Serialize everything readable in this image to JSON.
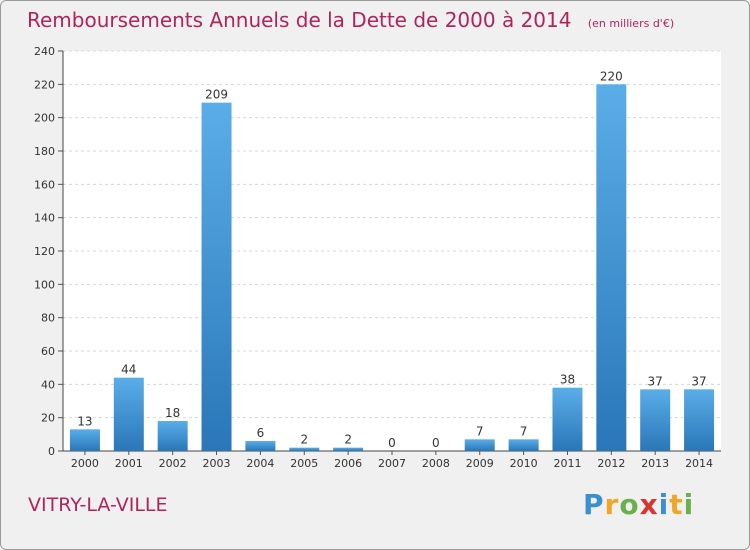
{
  "chart_data": {
    "type": "bar",
    "title": "Remboursements Annuels de la Dette de 2000 à 2014",
    "subtitle": "(en milliers d'€)",
    "categories": [
      "2000",
      "2001",
      "2002",
      "2003",
      "2004",
      "2005",
      "2006",
      "2007",
      "2008",
      "2009",
      "2010",
      "2011",
      "2012",
      "2013",
      "2014"
    ],
    "values": [
      13,
      44,
      18,
      209,
      6,
      2,
      2,
      0,
      0,
      7,
      7,
      38,
      220,
      37,
      37
    ],
    "ylim": [
      0,
      240
    ],
    "yticks": [
      0,
      20,
      40,
      60,
      80,
      100,
      120,
      140,
      160,
      180,
      200,
      220,
      240
    ],
    "grid": true,
    "colors": {
      "bar_light": "#5aaee8",
      "bar_dark": "#2a76b8",
      "title": "#b0245c"
    }
  },
  "commune": "VITRY-LA-VILLE",
  "brand": {
    "letters": [
      "P",
      "r",
      "o",
      "x",
      "i",
      "t",
      "i"
    ]
  }
}
